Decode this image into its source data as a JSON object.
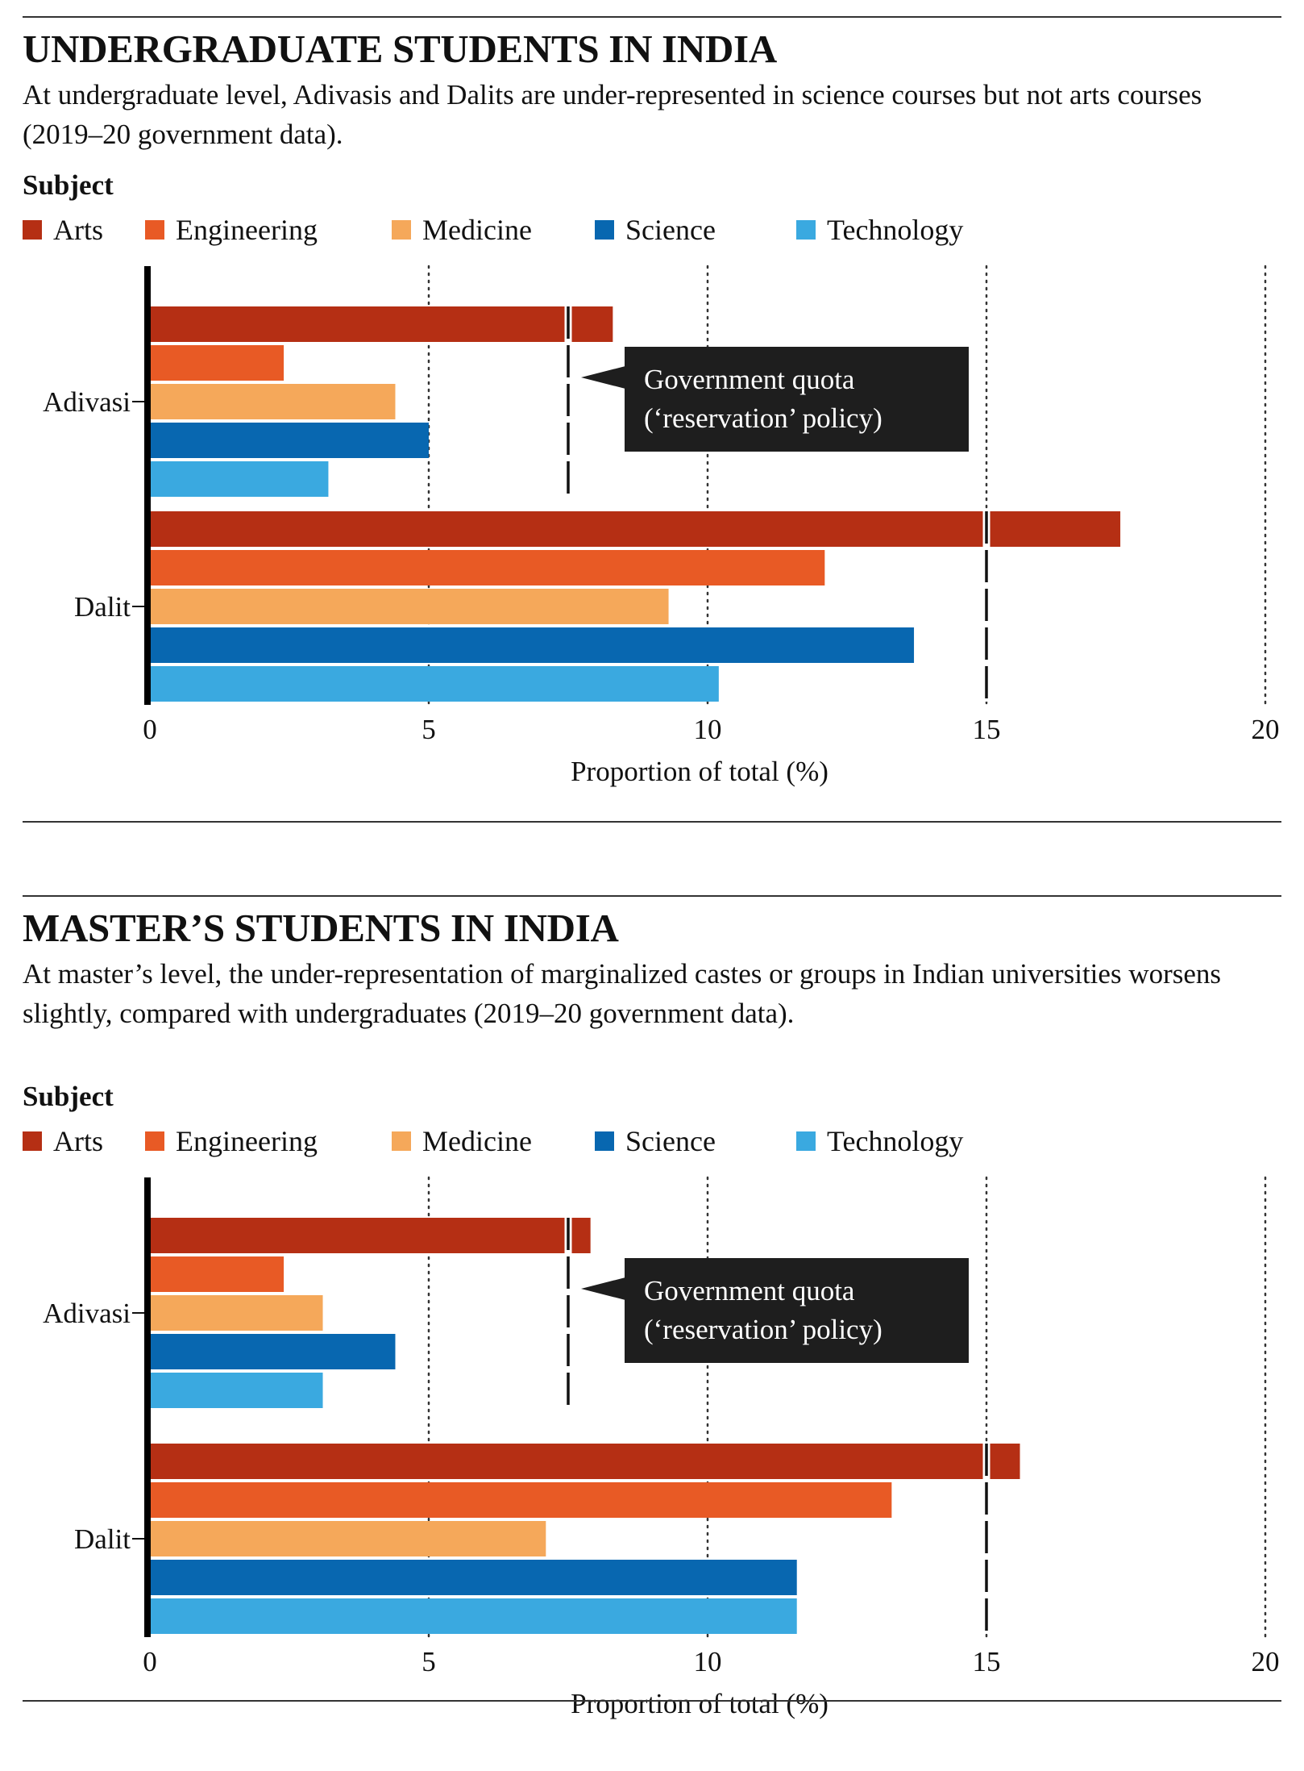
{
  "colors": {
    "Arts": "#b52f14",
    "Engineering": "#e85a25",
    "Medicine": "#f5a85a",
    "Science": "#0867b0",
    "Technology": "#3aa9e0",
    "callout_bg": "#1e1e1e",
    "quota_line": "#111111"
  },
  "charts": [
    {
      "title": "UNDERGRADUATE STUDENTS IN INDIA",
      "subtitle": "At undergraduate level, Adivasis and Dalits are under-represented in science courses but not arts courses (2019–20 government data).",
      "legend_title": "Subject",
      "callout": {
        "line1": "Government quota",
        "line2": "(‘reservation’ policy)"
      },
      "chart_data": {
        "type": "bar",
        "orientation": "horizontal",
        "categories": [
          "Adivasi",
          "Dalit"
        ],
        "series": [
          {
            "name": "Arts",
            "values": [
              8.3,
              17.4
            ]
          },
          {
            "name": "Engineering",
            "values": [
              2.4,
              12.1
            ]
          },
          {
            "name": "Medicine",
            "values": [
              4.4,
              9.3
            ]
          },
          {
            "name": "Science",
            "values": [
              5.0,
              13.7
            ]
          },
          {
            "name": "Technology",
            "values": [
              3.2,
              10.2
            ]
          }
        ],
        "reference_lines": {
          "Adivasi": 7.5,
          "Dalit": 15
        },
        "xlabel": "Proportion of total (%)",
        "xlim": [
          0,
          20
        ],
        "xticks": [
          0,
          5,
          10,
          15,
          20
        ],
        "grid": "vertical dotted",
        "legend_position": "top-left"
      }
    },
    {
      "title": "MASTER’S STUDENTS IN INDIA",
      "subtitle": "At master’s level, the under-representation of marginalized castes or groups in Indian universities worsens slightly, compared with undergraduates (2019–20 government data).",
      "legend_title": "Subject",
      "callout": {
        "line1": "Government quota",
        "line2": "(‘reservation’ policy)"
      },
      "chart_data": {
        "type": "bar",
        "orientation": "horizontal",
        "categories": [
          "Adivasi",
          "Dalit"
        ],
        "series": [
          {
            "name": "Arts",
            "values": [
              7.9,
              15.6
            ]
          },
          {
            "name": "Engineering",
            "values": [
              2.4,
              13.3
            ]
          },
          {
            "name": "Medicine",
            "values": [
              3.1,
              7.1
            ]
          },
          {
            "name": "Science",
            "values": [
              4.4,
              11.6
            ]
          },
          {
            "name": "Technology",
            "values": [
              3.1,
              11.6
            ]
          }
        ],
        "reference_lines": {
          "Adivasi": 7.5,
          "Dalit": 15
        },
        "xlabel": "Proportion of total (%)",
        "xlim": [
          0,
          20
        ],
        "xticks": [
          0,
          5,
          10,
          15,
          20
        ],
        "grid": "vertical dotted",
        "legend_position": "top-left"
      }
    }
  ]
}
